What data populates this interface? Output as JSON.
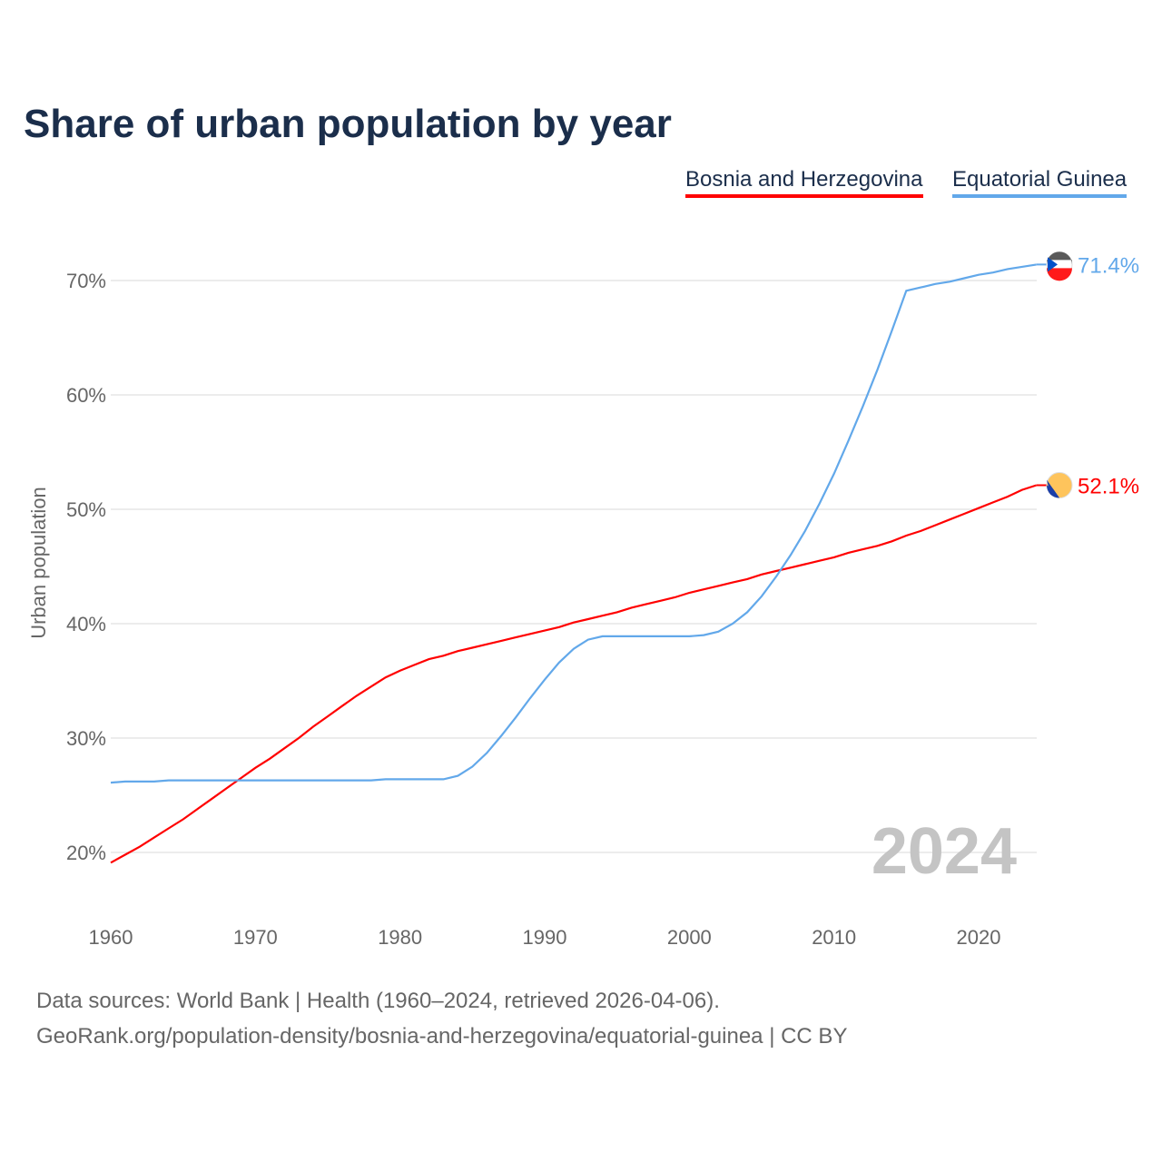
{
  "chart_data": {
    "type": "line",
    "title": "Share of urban population by year",
    "xlabel": "",
    "ylabel": "Urban population",
    "xlim": [
      1960,
      2024
    ],
    "ylim": [
      15,
      73
    ],
    "x_ticks": [
      "1960",
      "1970",
      "1980",
      "1990",
      "2000",
      "2010",
      "2020"
    ],
    "y_ticks": [
      "20%",
      "30%",
      "40%",
      "50%",
      "60%",
      "70%"
    ],
    "grid": true,
    "legend_position": "top-right",
    "watermark_year": "2024",
    "x": [
      1960,
      1961,
      1962,
      1963,
      1964,
      1965,
      1966,
      1967,
      1968,
      1969,
      1970,
      1971,
      1972,
      1973,
      1974,
      1975,
      1976,
      1977,
      1978,
      1979,
      1980,
      1981,
      1982,
      1983,
      1984,
      1985,
      1986,
      1987,
      1988,
      1989,
      1990,
      1991,
      1992,
      1993,
      1994,
      1995,
      1996,
      1997,
      1998,
      1999,
      2000,
      2001,
      2002,
      2003,
      2004,
      2005,
      2006,
      2007,
      2008,
      2009,
      2010,
      2011,
      2012,
      2013,
      2014,
      2015,
      2016,
      2017,
      2018,
      2019,
      2020,
      2021,
      2022,
      2023,
      2024
    ],
    "series": [
      {
        "name": "Bosnia and Herzegovina",
        "color": "#ff0000",
        "end_label": "52.1%",
        "values": [
          19.1,
          19.8,
          20.5,
          21.3,
          22.1,
          22.9,
          23.8,
          24.7,
          25.6,
          26.5,
          27.4,
          28.2,
          29.1,
          30.0,
          31.0,
          31.9,
          32.8,
          33.7,
          34.5,
          35.3,
          35.9,
          36.4,
          36.9,
          37.2,
          37.6,
          37.9,
          38.2,
          38.5,
          38.8,
          39.1,
          39.4,
          39.7,
          40.1,
          40.4,
          40.7,
          41.0,
          41.4,
          41.7,
          42.0,
          42.3,
          42.7,
          43.0,
          43.3,
          43.6,
          43.9,
          44.3,
          44.6,
          44.9,
          45.2,
          45.5,
          45.8,
          46.2,
          46.5,
          46.8,
          47.2,
          47.7,
          48.1,
          48.6,
          49.1,
          49.6,
          50.1,
          50.6,
          51.1,
          51.7,
          52.1
        ]
      },
      {
        "name": "Equatorial Guinea",
        "color": "#62a8ea",
        "end_label": "71.4%",
        "values": [
          26.1,
          26.2,
          26.2,
          26.2,
          26.3,
          26.3,
          26.3,
          26.3,
          26.3,
          26.3,
          26.3,
          26.3,
          26.3,
          26.3,
          26.3,
          26.3,
          26.3,
          26.3,
          26.3,
          26.4,
          26.4,
          26.4,
          26.4,
          26.4,
          26.7,
          27.5,
          28.7,
          30.2,
          31.8,
          33.5,
          35.1,
          36.6,
          37.8,
          38.6,
          38.9,
          38.9,
          38.9,
          38.9,
          38.9,
          38.9,
          38.9,
          39.0,
          39.3,
          40.0,
          41.0,
          42.4,
          44.1,
          46.0,
          48.1,
          50.5,
          53.1,
          56.0,
          59.0,
          62.2,
          65.6,
          69.1,
          69.4,
          69.7,
          69.9,
          70.2,
          70.5,
          70.7,
          71.0,
          71.2,
          71.4
        ]
      }
    ]
  },
  "footer": {
    "line1": "Data sources: World Bank | Health (1960–2024, retrieved 2026-04-06).",
    "line2": "GeoRank.org/population-density/bosnia-and-herzegovina/equatorial-guinea | CC BY"
  }
}
